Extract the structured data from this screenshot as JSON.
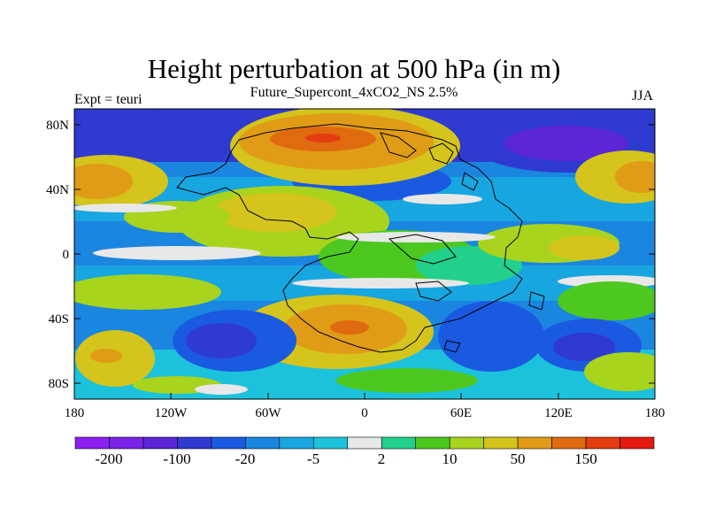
{
  "title": "Height perturbation at 500 hPa (in m)",
  "subtitle": "Future_Supercont_4xCO2_NS 2.5%",
  "left_label": "Expt = teuri",
  "right_label": "JJA",
  "axes": {
    "lat_ticks": [
      "80N",
      "40N",
      "0",
      "40S",
      "80S"
    ],
    "lon_ticks": [
      "180",
      "120W",
      "60W",
      "0",
      "60E",
      "120E",
      "180"
    ]
  },
  "colorbar": {
    "colors": [
      "#8c1ff0",
      "#7a22e6",
      "#5a26d6",
      "#2f3ad0",
      "#1a5ae0",
      "#1a86e0",
      "#17a6e0",
      "#1cc2dc",
      "#e8e8e8",
      "#22d08c",
      "#4cc820",
      "#a8d41e",
      "#d4c41c",
      "#e09c16",
      "#e06a10",
      "#e43c10",
      "#e41a10"
    ],
    "labels": [
      "-200",
      "-100",
      "-20",
      "-5",
      "2",
      "10",
      "50",
      "150"
    ]
  }
}
